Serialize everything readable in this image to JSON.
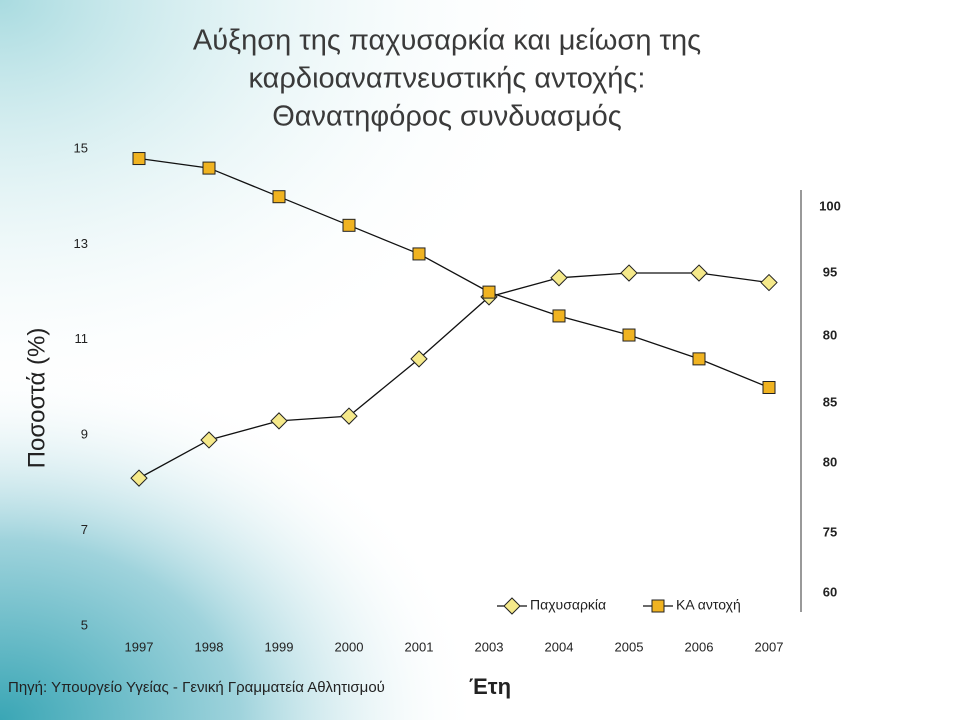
{
  "chart_data": {
    "type": "line",
    "title": [
      "Αύξηση της παχυσαρκία και μείωση της",
      "καρδιοαναπνευστικής αντοχής:",
      "Θανατηφόρος συνδυασμός"
    ],
    "ylabel": "Ποσοστά (%)",
    "xlabel": "Έτη",
    "source": "Πηγή: Υπουργείο Υγείας -  Γενική Γραμματεία Αθλητισμού",
    "categories": [
      "1997",
      "1998",
      "1999",
      "2000",
      "2001",
      "2003",
      "2004",
      "2005",
      "2006",
      "2007"
    ],
    "series": [
      {
        "name": "Παχυσαρκία",
        "color": "#f5e98a",
        "marker": "diamond",
        "values": [
          8.1,
          8.9,
          9.3,
          9.4,
          10.6,
          11.9,
          12.3,
          12.4,
          12.4,
          12.2
        ]
      },
      {
        "name": "ΚΑ αντοχή",
        "color": "#f0b321",
        "marker": "square",
        "values": [
          14.8,
          14.6,
          14.0,
          13.4,
          12.8,
          12.0,
          11.5,
          11.1,
          10.6,
          10.0
        ]
      }
    ],
    "ylim": [
      5,
      15
    ],
    "yticks": [
      5,
      7,
      9,
      11,
      13,
      15
    ],
    "right_axis_labels": [
      "100",
      "95",
      "80",
      "85",
      "80",
      "75",
      "60"
    ],
    "legend": "bottom-right",
    "grid": false
  }
}
